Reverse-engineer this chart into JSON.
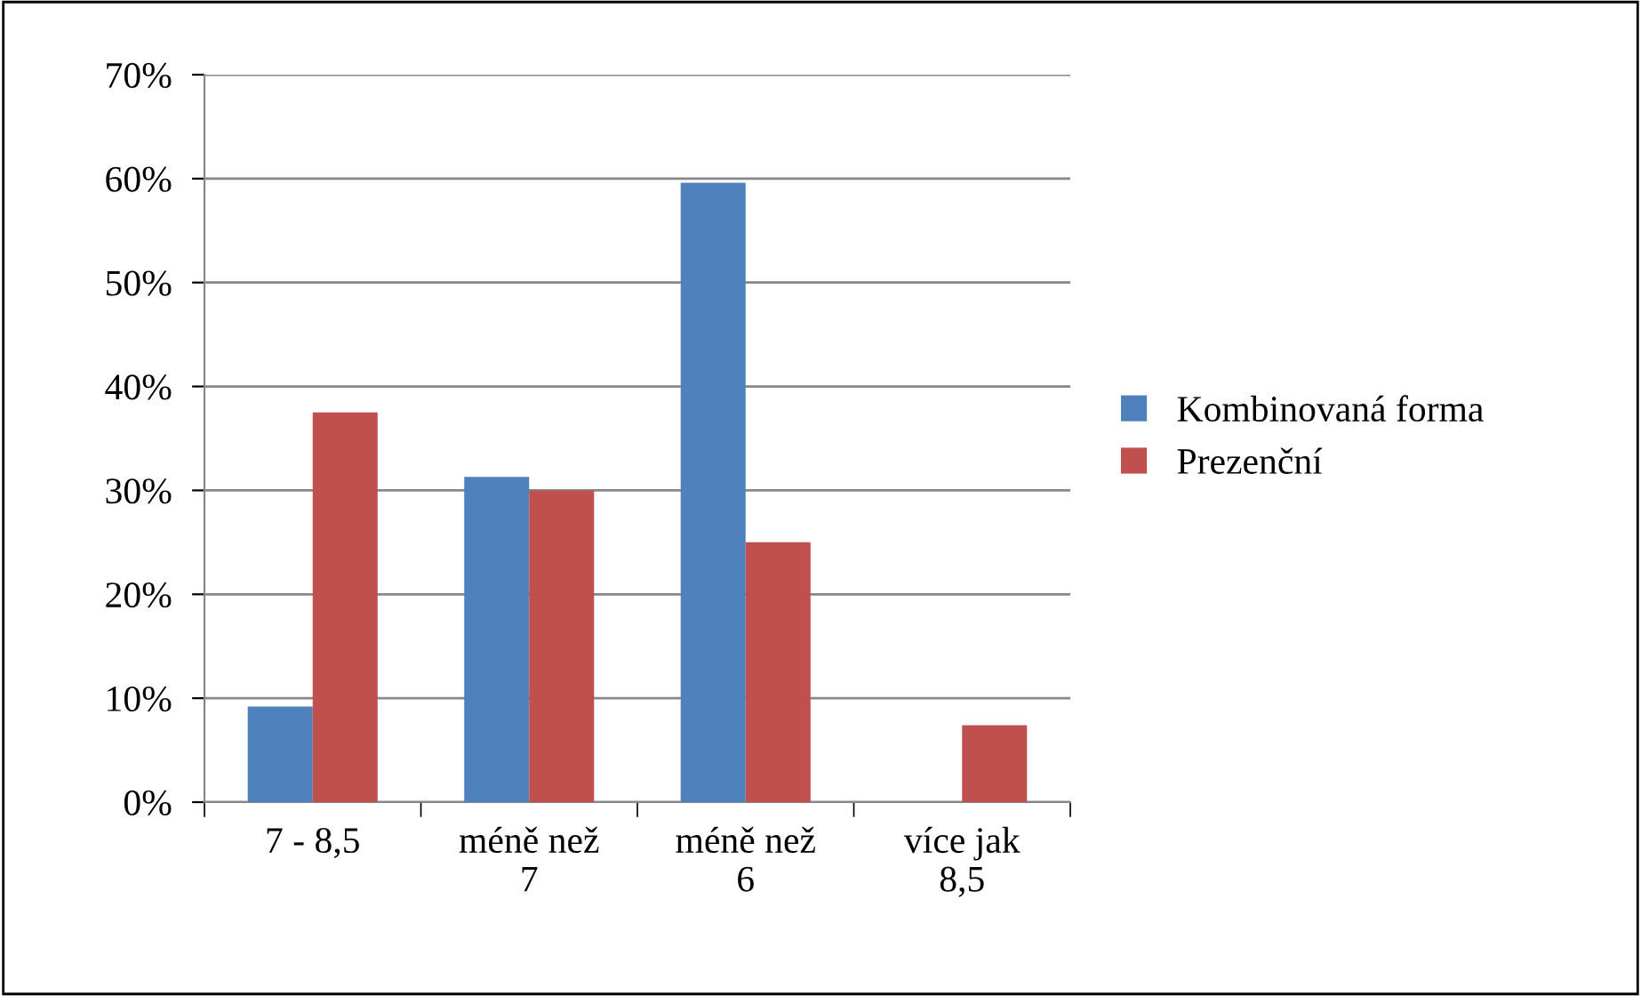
{
  "chart_data": {
    "type": "bar",
    "categories": [
      "7 - 8,5",
      "méně než\n7",
      "méně než\n6",
      "více jak\n8,5"
    ],
    "series": [
      {
        "name": "Kombinovaná forma",
        "color": "#4f81bd",
        "values": [
          9.2,
          31.3,
          59.6,
          0
        ]
      },
      {
        "name": "Prezenční",
        "color": "#c0504d",
        "values": [
          37.5,
          30,
          25,
          7.4
        ]
      }
    ],
    "ylim": [
      0,
      70
    ],
    "yticks": [
      {
        "value": 0,
        "label": "0%"
      },
      {
        "value": 10,
        "label": "10%"
      },
      {
        "value": 20,
        "label": "20%"
      },
      {
        "value": 30,
        "label": "30%"
      },
      {
        "value": 40,
        "label": "40%"
      },
      {
        "value": 50,
        "label": "50%"
      },
      {
        "value": 60,
        "label": "60%"
      },
      {
        "value": 70,
        "label": "70%"
      }
    ],
    "grid": "y",
    "legend": "right"
  }
}
